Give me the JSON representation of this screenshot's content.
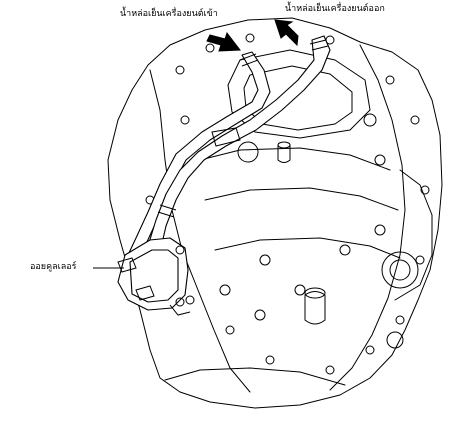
{
  "labels": {
    "coolant_in": "น้ำหล่อเย็นเครื่องยนต์เข้า",
    "coolant_out": "น้ำหล่อเย็นเครื่องยนต์ออก",
    "oil_cooler": "ออยคูลเลอร์"
  },
  "colors": {
    "line": "#000000",
    "background": "#ffffff"
  }
}
